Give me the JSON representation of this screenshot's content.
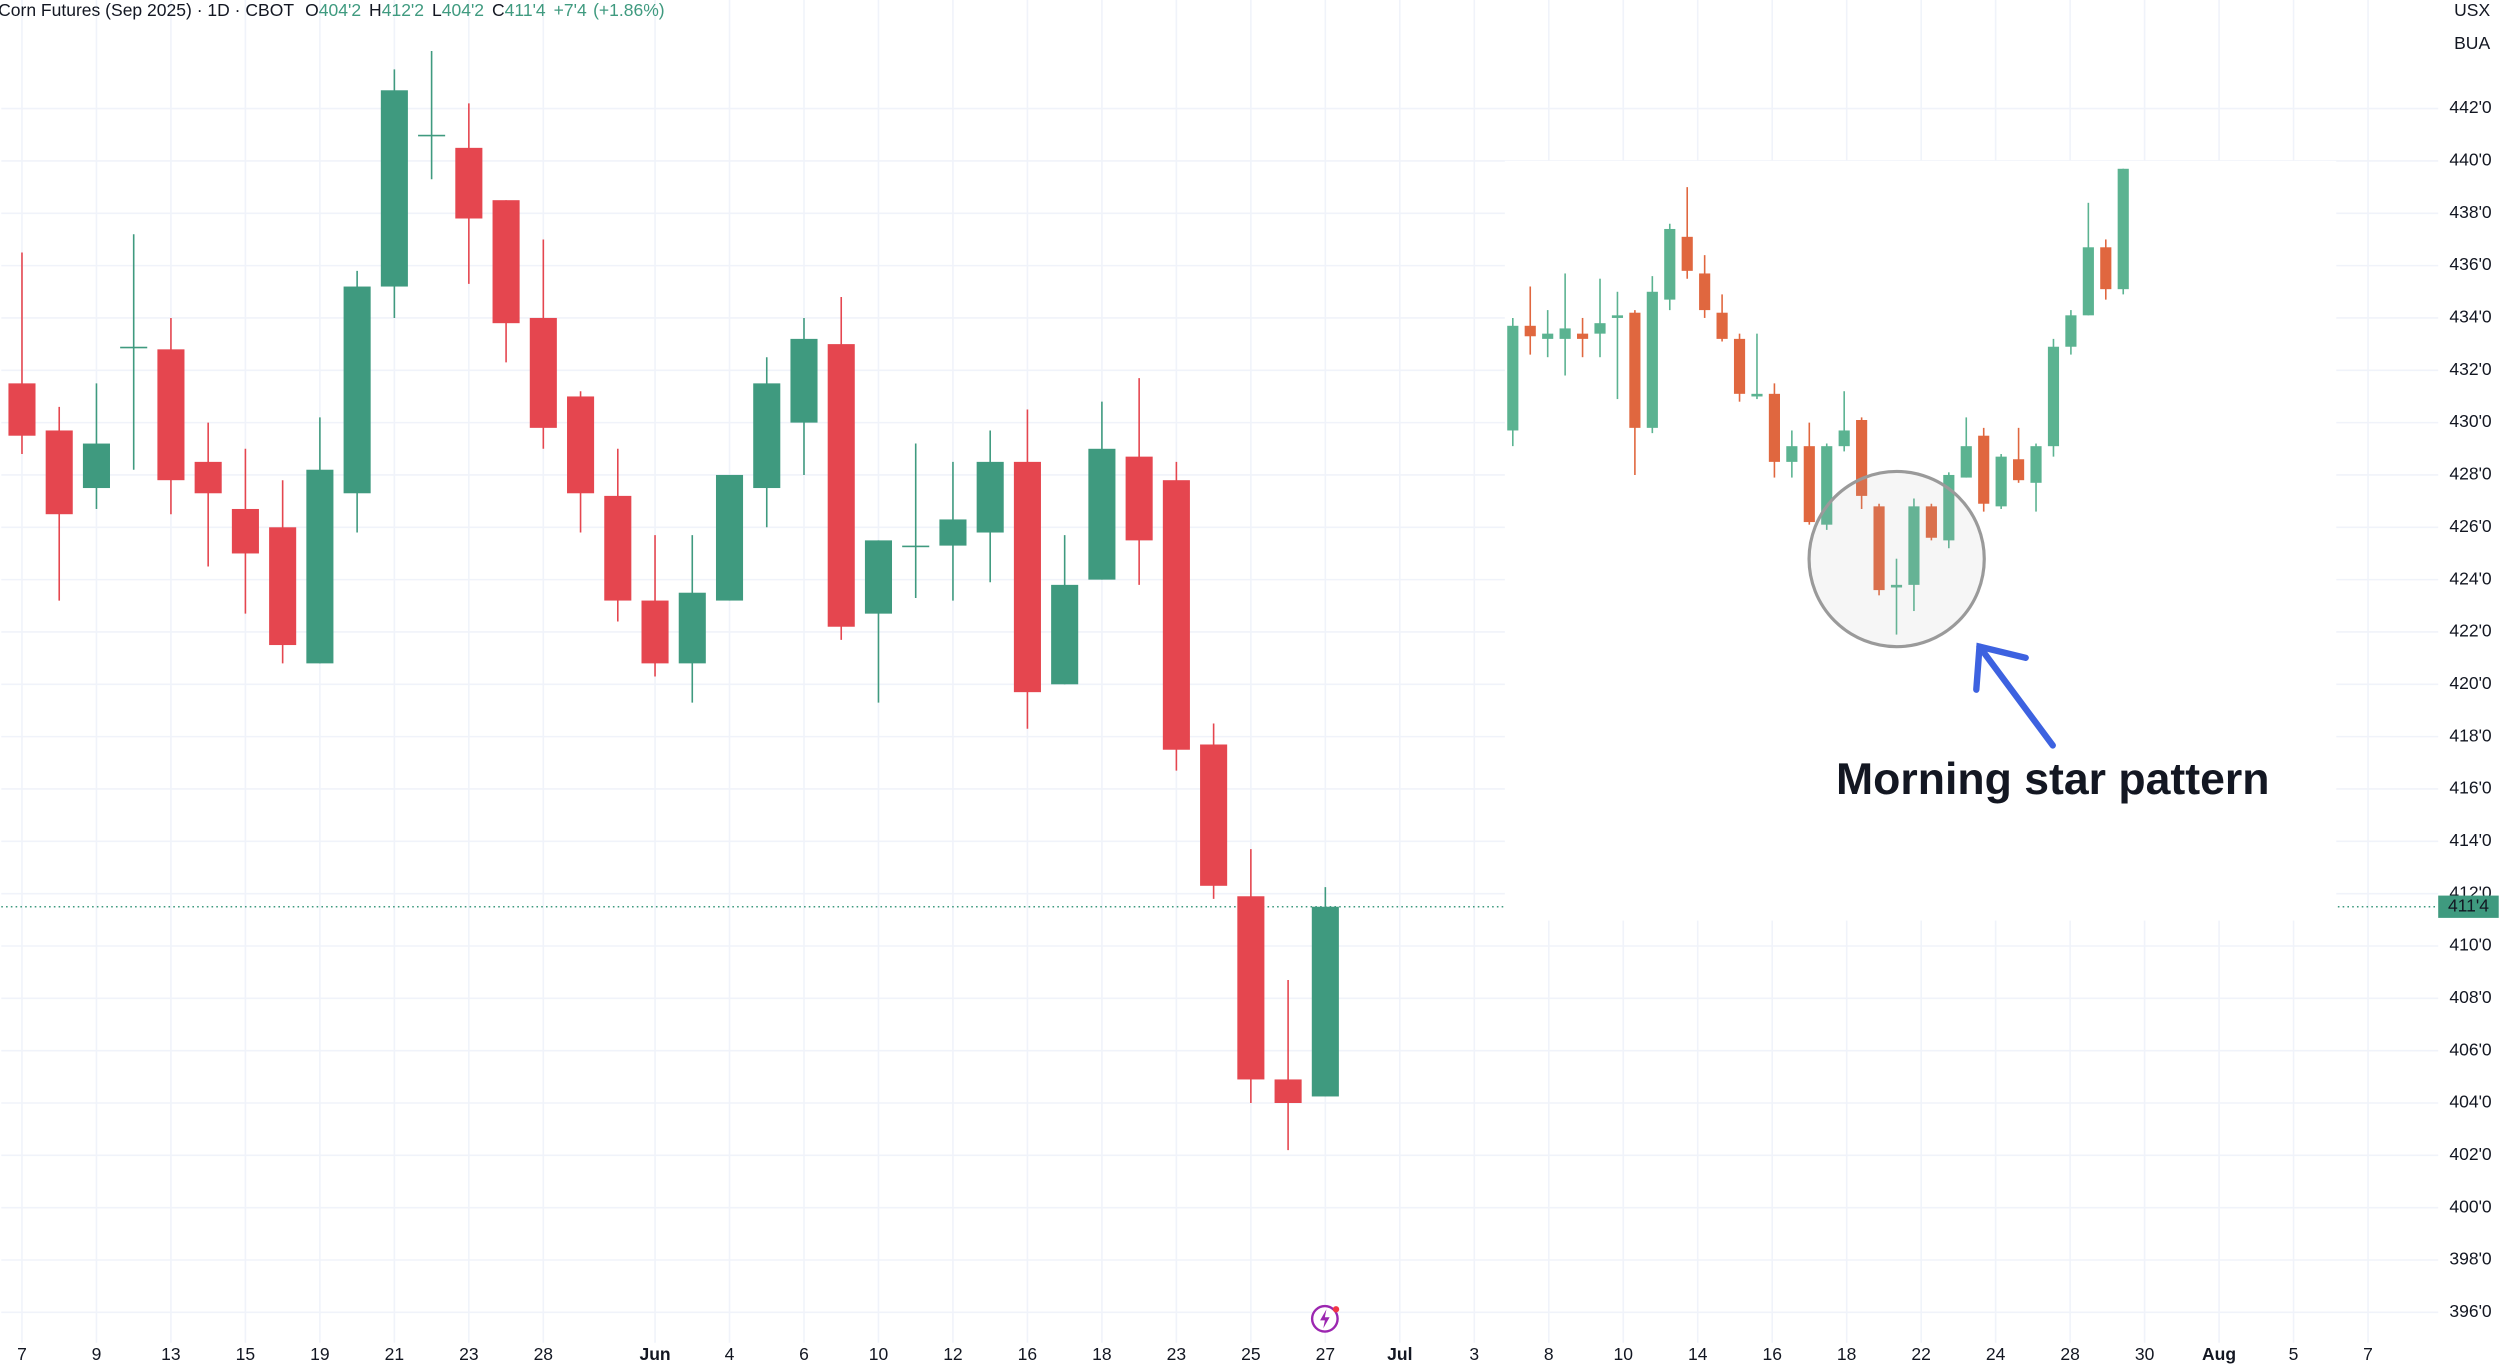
{
  "chart_data": {
    "type": "candlestick",
    "header": {
      "title": "Corn Futures (Sep 2025) · 1D · CBOT",
      "open_label": "O",
      "open": {
        "value": 404.25,
        "label": "404'2"
      },
      "high_label": "H",
      "high": {
        "value": 412.25,
        "label": "412'2"
      },
      "low_label": "L",
      "low": {
        "value": 404.25,
        "label": "404'2"
      },
      "close_label": "C",
      "close": {
        "value": 411.5,
        "label": "411'4"
      },
      "change": {
        "value": 7.5,
        "label": "+7'4"
      },
      "change_pct": {
        "value": 1.86,
        "label": "(+1.86%)"
      }
    },
    "axis_labels": [
      "USX",
      "BUA"
    ],
    "up_color": "#3f9a7f",
    "down_color": "#e5464f",
    "grid": true,
    "ylim": [
      394.84,
      446.15
    ],
    "yticks": [
      {
        "value": 396,
        "label": "396'0"
      },
      {
        "value": 398,
        "label": "398'0"
      },
      {
        "value": 400,
        "label": "400'0"
      },
      {
        "value": 402,
        "label": "402'0"
      },
      {
        "value": 404,
        "label": "404'0"
      },
      {
        "value": 406,
        "label": "406'0"
      },
      {
        "value": 408,
        "label": "408'0"
      },
      {
        "value": 410,
        "label": "410'0"
      },
      {
        "value": 412,
        "label": "412'0"
      },
      {
        "value": 414,
        "label": "414'0"
      },
      {
        "value": 416,
        "label": "416'0"
      },
      {
        "value": 418,
        "label": "418'0"
      },
      {
        "value": 420,
        "label": "420'0"
      },
      {
        "value": 422,
        "label": "422'0"
      },
      {
        "value": 424,
        "label": "424'0"
      },
      {
        "value": 426,
        "label": "426'0"
      },
      {
        "value": 428,
        "label": "428'0"
      },
      {
        "value": 430,
        "label": "430'0"
      },
      {
        "value": 432,
        "label": "432'0"
      },
      {
        "value": 434,
        "label": "434'0"
      },
      {
        "value": 436,
        "label": "436'0"
      },
      {
        "value": 438,
        "label": "438'0"
      },
      {
        "value": 440,
        "label": "440'0"
      },
      {
        "value": 442,
        "label": "442'0"
      }
    ],
    "categories": [
      "7",
      null,
      "9",
      null,
      "13",
      null,
      "15",
      null,
      "19",
      null,
      "21",
      null,
      "23",
      null,
      "28",
      null,
      null,
      "Jun",
      null,
      "4",
      null,
      "6",
      null,
      "10",
      null,
      "12",
      null,
      "16",
      null,
      "18",
      null,
      "23",
      null,
      "25",
      null,
      "27",
      null,
      "Jul",
      null,
      "3",
      null,
      "8",
      null,
      "10",
      null,
      "14",
      null,
      "16",
      null,
      "18",
      null,
      "22",
      null,
      "24",
      null,
      "28",
      null,
      "30",
      null,
      "Aug",
      null,
      "5",
      null,
      "7"
    ],
    "open": [
      431.5,
      429.7,
      427.5,
      432.9,
      432.8,
      428.5,
      426.7,
      426,
      420.8,
      427.3,
      435.2,
      441,
      440.5,
      438.5,
      434,
      431,
      427.2,
      423.2,
      420.8,
      423.2,
      427.5,
      430,
      433,
      422.7,
      425.3,
      425.3,
      425.8,
      428.5,
      420,
      424,
      428.7,
      427.8,
      417.7,
      411.9,
      404.9,
      404.25,
      null,
      null,
      null,
      null,
      null,
      null,
      null,
      null,
      null,
      null,
      null,
      null,
      null,
      null,
      null,
      null,
      null,
      null,
      null,
      null,
      null,
      null,
      null,
      null,
      null,
      null,
      null,
      null
    ],
    "high": [
      436.5,
      430.6,
      431.5,
      437.2,
      434,
      430,
      429,
      427.8,
      430.2,
      435.8,
      443.5,
      444.2,
      442.2,
      438.5,
      437,
      431.2,
      429,
      425.7,
      425.7,
      428,
      432.5,
      434,
      434.8,
      425.5,
      429.2,
      428.5,
      429.7,
      430.5,
      425.7,
      430.8,
      431.7,
      428.5,
      418.5,
      413.7,
      408.7,
      412.25,
      null,
      null,
      null,
      null,
      null,
      null,
      null,
      null,
      null,
      null,
      null,
      null,
      null,
      null,
      null,
      null,
      null,
      null,
      null,
      null,
      null,
      null,
      null,
      null,
      null,
      null,
      null,
      null
    ],
    "low": [
      428.8,
      423.2,
      426.7,
      428.2,
      426.5,
      424.5,
      422.7,
      420.8,
      420.8,
      425.8,
      434,
      439.3,
      435.3,
      432.3,
      429,
      425.8,
      422.4,
      420.3,
      419.3,
      423.2,
      426,
      428,
      421.7,
      419.3,
      423.3,
      423.2,
      423.9,
      418.3,
      420,
      424,
      423.8,
      416.7,
      411.8,
      404,
      402.2,
      404.25,
      null,
      null,
      null,
      null,
      null,
      null,
      null,
      null,
      null,
      null,
      null,
      null,
      null,
      null,
      null,
      null,
      null,
      null,
      null,
      null,
      null,
      null,
      null,
      null,
      null,
      null,
      null,
      null
    ],
    "close": [
      429.5,
      426.5,
      429.2,
      432.9,
      427.8,
      427.3,
      425,
      421.5,
      428.2,
      435.2,
      442.7,
      441,
      437.8,
      433.8,
      429.8,
      427.3,
      423.2,
      420.8,
      423.5,
      428,
      431.5,
      433.2,
      422.2,
      425.5,
      425.3,
      426.3,
      428.5,
      419.7,
      423.8,
      429,
      425.5,
      417.5,
      412.3,
      404.9,
      404,
      411.5,
      null,
      null,
      null,
      null,
      null,
      null,
      null,
      null,
      null,
      null,
      null,
      null,
      null,
      null,
      null,
      null,
      null,
      null,
      null,
      null,
      null,
      null,
      null,
      null,
      null,
      null,
      null,
      null
    ],
    "inset": {
      "type": "candlestick",
      "up_color": "#5bb391",
      "down_color": "#e0673f",
      "annotation": "Morning star pattern",
      "annotation_color": "#3d62e0",
      "open": [
        429.7,
        433.7,
        433.2,
        433.2,
        433.4,
        433.4,
        434,
        434.2,
        429.8,
        434.7,
        437.1,
        435.7,
        434.2,
        433.2,
        431,
        431.1,
        428.5,
        429.1,
        426.1,
        429.1,
        430.1,
        426.8,
        423.7,
        423.8,
        426.8,
        425.5,
        427.9,
        429.5,
        426.8,
        428.6,
        427.7,
        429.1,
        432.9,
        434.1,
        436.7,
        435.1
      ],
      "high": [
        434,
        435.2,
        434.3,
        435.7,
        434,
        435.5,
        435,
        434.3,
        435.6,
        437.6,
        439,
        436.4,
        434.9,
        433.4,
        433.4,
        431.5,
        429.7,
        430,
        429.2,
        431.2,
        430.2,
        426.9,
        424.8,
        427.1,
        426.9,
        428.1,
        430.2,
        429.8,
        428.8,
        429.8,
        429.2,
        433.2,
        434.3,
        438.4,
        437,
        439.7
      ],
      "low": [
        429.1,
        432.6,
        432.5,
        431.8,
        432.5,
        432.5,
        430.9,
        428,
        429.6,
        434.3,
        435.5,
        434,
        433.1,
        430.8,
        430.9,
        427.9,
        427.9,
        426.1,
        425.9,
        428.9,
        426.7,
        423.4,
        421.9,
        422.8,
        425.5,
        425.2,
        427.9,
        426.6,
        426.7,
        427.7,
        426.6,
        428.7,
        432.6,
        434.1,
        434.7,
        434.9
      ],
      "close": [
        433.7,
        433.3,
        433.4,
        433.6,
        433.2,
        433.8,
        434.1,
        429.8,
        435,
        437.4,
        435.8,
        434.3,
        433.2,
        431.1,
        431.1,
        428.5,
        429.1,
        426.2,
        429.1,
        429.7,
        427.2,
        423.6,
        423.8,
        426.8,
        425.6,
        428,
        429.1,
        426.9,
        428.7,
        427.8,
        429.1,
        432.9,
        434.1,
        436.7,
        435.1,
        439.7
      ]
    }
  }
}
